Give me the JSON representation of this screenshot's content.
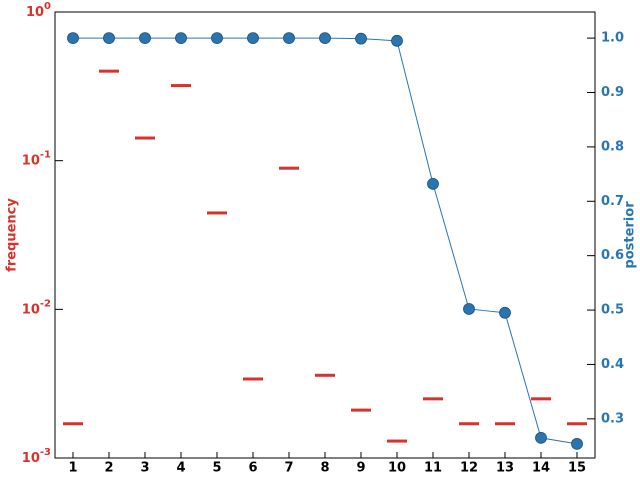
{
  "chart_data": {
    "type": "line",
    "categories": [
      "1",
      "2",
      "3",
      "4",
      "5",
      "6",
      "7",
      "8",
      "9",
      "10",
      "11",
      "12",
      "13",
      "14",
      "15"
    ],
    "ylabel": "frequency",
    "y2label": "posterior",
    "ylog": true,
    "ylim": [
      0.001,
      1
    ],
    "yticks": [
      {
        "value": 0.001,
        "label": "10^-3"
      },
      {
        "value": 0.01,
        "label": "10^-2"
      },
      {
        "value": 0.1,
        "label": "10^-1"
      },
      {
        "value": 1,
        "label": "10^0"
      }
    ],
    "y2lim": [
      0.228,
      1.048
    ],
    "y2ticks": [
      0.3,
      0.4,
      0.5,
      0.6,
      0.7,
      0.8,
      0.9,
      {
        "value": 1,
        "label": "1.0"
      }
    ],
    "series": [
      {
        "name": "frequency",
        "color": "#d9312b",
        "marker": "dash",
        "line": false,
        "values": [
          0.0017,
          0.4,
          0.142,
          0.32,
          0.0445,
          0.0034,
          0.089,
          0.0036,
          0.0021,
          0.0013,
          0.0025,
          0.0017,
          0.0017,
          0.0025,
          0.0017
        ]
      },
      {
        "name": "posterior",
        "color": "#2a75b0",
        "marker": "circle",
        "line": true,
        "axis": "y2",
        "values": [
          1.0,
          1.0,
          1.0,
          1.0,
          1.0,
          1.0,
          1.0,
          1.0,
          0.999,
          0.995,
          0.732,
          0.502,
          0.495,
          0.265,
          0.254
        ]
      }
    ]
  }
}
